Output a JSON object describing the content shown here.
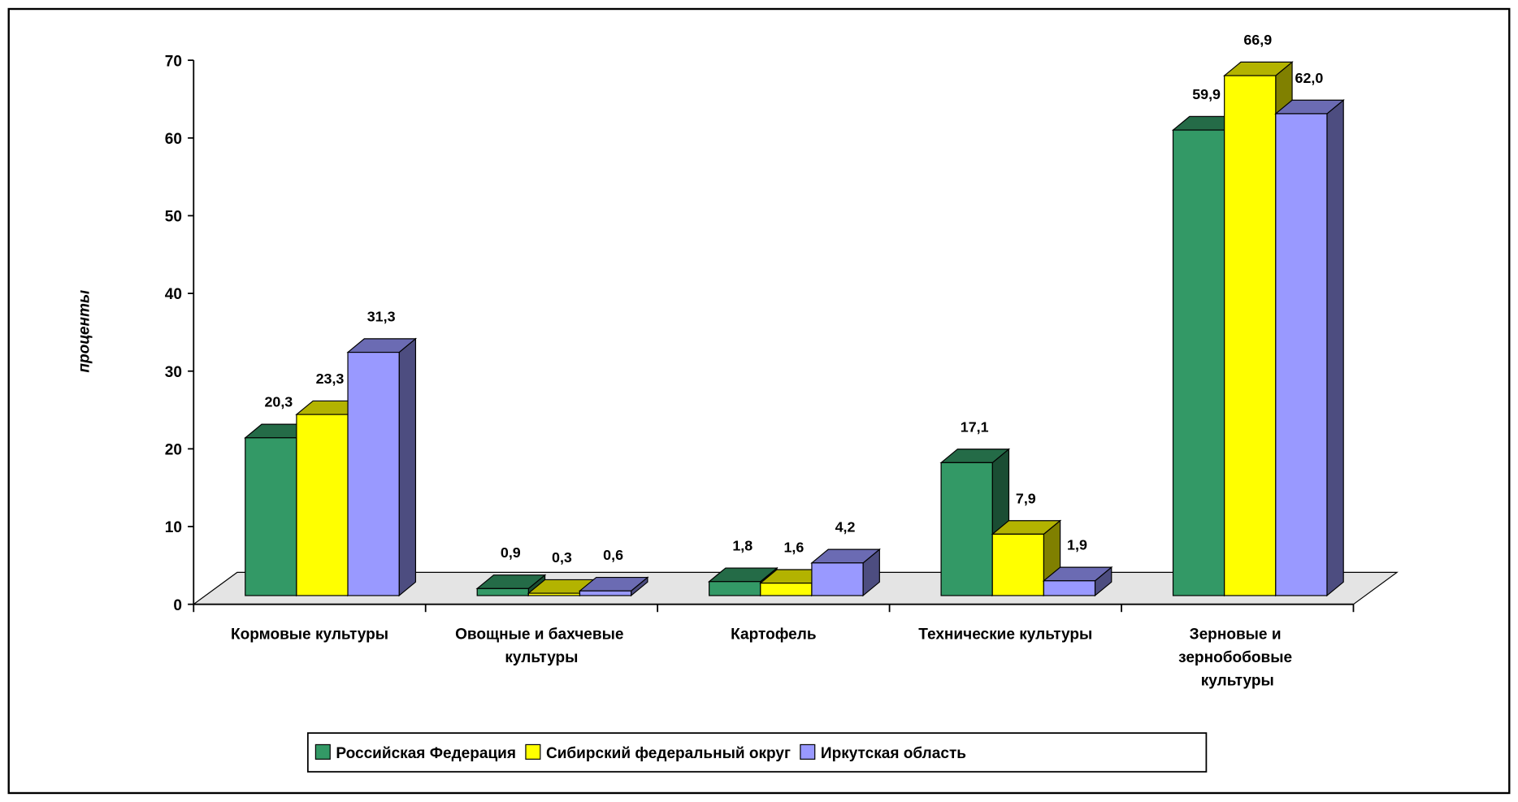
{
  "chart_data": {
    "type": "bar3d",
    "y_label": "проценты",
    "categories": [
      "Кормовые культуры",
      "Овощные и бахчевые культуры",
      "Картофель",
      "Технические культуры",
      "Зерновые и зернобобовые культуры"
    ],
    "series": [
      {
        "name": "Российская Федерация",
        "color": "#339966",
        "values": [
          20.3,
          0.9,
          1.8,
          17.1,
          59.9
        ],
        "value_labels": [
          "20,3",
          "0,9",
          "1,8",
          "17,1",
          "59,9"
        ]
      },
      {
        "name": "Сибирский федеральный округ",
        "color": "#ffff00",
        "values": [
          23.3,
          0.3,
          1.6,
          7.9,
          66.9
        ],
        "value_labels": [
          "23,3",
          "0,3",
          "1,6",
          "7,9",
          "66,9"
        ]
      },
      {
        "name": "Иркутская область",
        "color": "#9999ff",
        "values": [
          31.3,
          0.6,
          4.2,
          1.9,
          62.0
        ],
        "value_labels": [
          "31,3",
          "0,6",
          "4,2",
          "1,9",
          "62,0"
        ]
      }
    ],
    "ylim": [
      0,
      70
    ],
    "yticks": [
      0,
      10,
      20,
      30,
      40,
      50,
      60,
      70
    ],
    "legend": "bottom"
  }
}
